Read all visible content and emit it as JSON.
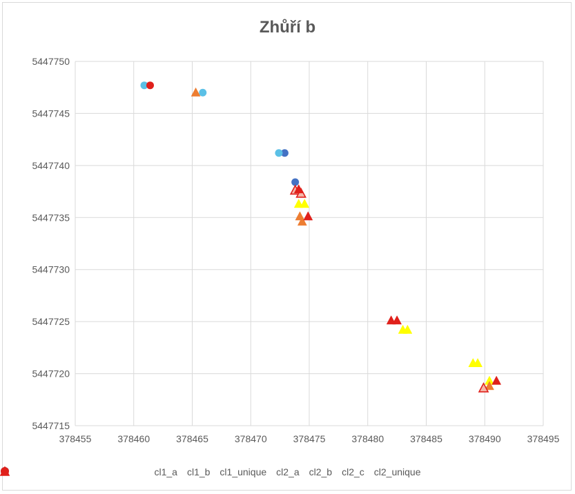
{
  "chart_data": {
    "type": "scatter",
    "title": "Zhůří b",
    "xlim": [
      378455,
      378495
    ],
    "ylim": [
      5447715,
      5447750
    ],
    "x_ticks": [
      "378455",
      "378460",
      "378465",
      "378470",
      "378475",
      "378480",
      "378485",
      "378490",
      "378495"
    ],
    "y_ticks": [
      "5447715",
      "5447720",
      "5447725",
      "5447730",
      "5447735",
      "5447740",
      "5447745",
      "5447750"
    ],
    "grid": true,
    "legend_position": "bottom",
    "series": [
      {
        "name": "cl1_a",
        "marker": "circle",
        "color": "#4472c4",
        "filled": true,
        "points": [
          [
            378472.9,
            5447741.2
          ],
          [
            378473.8,
            5447738.4
          ]
        ]
      },
      {
        "name": "cl1_b",
        "marker": "circle",
        "color": "#5bc0e6",
        "filled": true,
        "points": [
          [
            378460.9,
            5447747.7
          ],
          [
            378465.9,
            5447747.0
          ],
          [
            378472.4,
            5447741.2
          ]
        ]
      },
      {
        "name": "cl1_unique",
        "marker": "circle",
        "color": "#e0201b",
        "filled": true,
        "points": [
          [
            378461.4,
            5447747.7
          ]
        ]
      },
      {
        "name": "cl2_a",
        "marker": "triangle",
        "color": "#ffff00",
        "filled": true,
        "points": [
          [
            378474.1,
            5447736.3
          ],
          [
            378474.6,
            5447736.3
          ],
          [
            378483.0,
            5447724.2
          ],
          [
            378483.4,
            5447724.2
          ],
          [
            378489.0,
            5447721.0
          ],
          [
            378489.4,
            5447721.0
          ],
          [
            378490.4,
            5447719.3
          ]
        ]
      },
      {
        "name": "cl2_b",
        "marker": "triangle",
        "color": "#ed7d31",
        "filled": true,
        "points": [
          [
            378465.3,
            5447747.0
          ],
          [
            378474.2,
            5447735.1
          ],
          [
            378474.4,
            5447734.6
          ],
          [
            378490.4,
            5447718.8
          ]
        ]
      },
      {
        "name": "cl2_c",
        "marker": "triangle",
        "color": "#e0201b",
        "filled": false,
        "points": [
          [
            378473.8,
            5447737.6
          ],
          [
            378474.3,
            5447737.3
          ],
          [
            378489.9,
            5447718.6
          ]
        ]
      },
      {
        "name": "cl2_unique",
        "marker": "triangle",
        "color": "#e0201b",
        "filled": true,
        "points": [
          [
            378474.1,
            5447737.7
          ],
          [
            378474.9,
            5447735.1
          ],
          [
            378482.0,
            5447725.1
          ],
          [
            378482.5,
            5447725.1
          ],
          [
            378491.0,
            5447719.3
          ]
        ]
      }
    ]
  }
}
